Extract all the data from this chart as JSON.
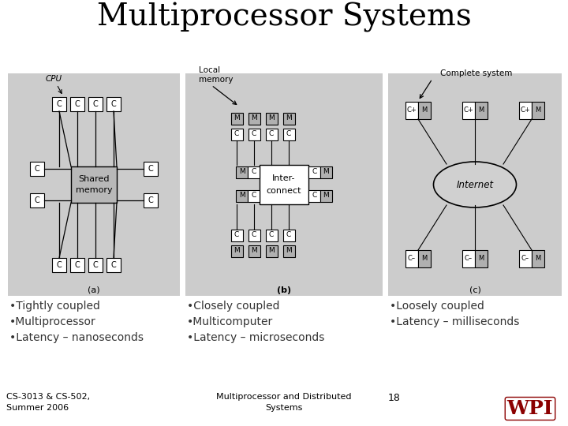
{
  "title": "Multiprocessor Systems",
  "title_fontsize": 28,
  "bg_color": "#ffffff",
  "panel_bg": "#cccccc",
  "left_col_bullets": [
    "•Tightly coupled",
    "•Multiprocessor",
    "•Latency – nanoseconds"
  ],
  "mid_col_bullets": [
    "•Closely coupled",
    "•Multicomputer",
    "•Latency – microseconds"
  ],
  "right_col_bullets": [
    "•Loosely coupled",
    "•Latency – milliseconds"
  ],
  "label_a": "(a)",
  "label_b": "(b)",
  "label_c": "(c)",
  "footer_left": "CS-3013 & CS-502,\nSummer 2006",
  "footer_mid": "Multiprocessor and Distributed\nSystems",
  "footer_page": "18",
  "bullet_fontsize": 10,
  "bullet_color": "#333333",
  "footer_fontsize": 8,
  "panel_a": [
    10,
    93,
    218,
    282
  ],
  "panel_b": [
    235,
    93,
    250,
    282
  ],
  "panel_c": [
    492,
    93,
    220,
    282
  ],
  "gray_box": "#b0b0b0",
  "white_box": "#ffffff",
  "sm_box_color": "#b8b8b8"
}
